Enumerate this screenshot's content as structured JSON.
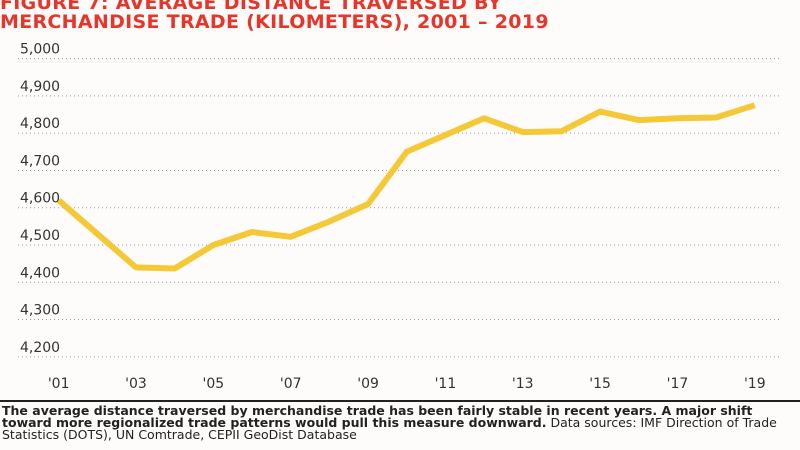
{
  "chart_data": {
    "type": "line",
    "title": "FIGURE 7: AVERAGE DISTANCE TRAVERSED BY\nMERCHANDISE TRADE (KILOMETERS), 2001 – 2019",
    "x": [
      2001,
      2002,
      2003,
      2004,
      2005,
      2006,
      2007,
      2008,
      2009,
      2010,
      2011,
      2012,
      2013,
      2014,
      2015,
      2016,
      2017,
      2018,
      2019
    ],
    "series": [
      {
        "values": [
          4620,
          4530,
          4440,
          4437,
          4500,
          4535,
          4522,
          4563,
          4610,
          4750,
          4795,
          4840,
          4803,
          4805,
          4858,
          4835,
          4840,
          4842,
          4875
        ]
      }
    ],
    "x_tick_labels": [
      "'01",
      "'03",
      "'05",
      "'07",
      "'09",
      "'11",
      "'13",
      "'15",
      "'17",
      "'19"
    ],
    "y_tick_labels": [
      "4,200",
      "4,300",
      "4,400",
      "4,500",
      "4,600",
      "4,700",
      "4,800",
      "4,900",
      "5,000"
    ],
    "y_ticks": [
      4200,
      4300,
      4400,
      4500,
      4600,
      4700,
      4800,
      4900,
      5000
    ],
    "ylim": [
      4170,
      5050
    ],
    "xlim": [
      2000,
      2019.6
    ],
    "grid": "horizontal-dotted",
    "line_color": "#f5c838",
    "title_color": "#e8352b"
  },
  "caption": {
    "bold": "The average distance traversed by merchandise trade has been fairly stable in recent years. A major shift toward more regionalized trade patterns would pull this measure downward.",
    "normal": " Data sources: IMF Direction of Trade Statistics (DOTS), UN Comtrade, CEPII GeoDist Database"
  }
}
